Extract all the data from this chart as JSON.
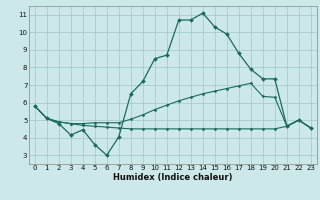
{
  "xlabel": "Humidex (Indice chaleur)",
  "bg_color": "#cce8e8",
  "grid_color": "#aacccc",
  "line_color": "#1a6b5a",
  "xlim": [
    -0.5,
    23.5
  ],
  "ylim": [
    2.5,
    11.5
  ],
  "xticks": [
    0,
    1,
    2,
    3,
    4,
    5,
    6,
    7,
    8,
    9,
    10,
    11,
    12,
    13,
    14,
    15,
    16,
    17,
    18,
    19,
    20,
    21,
    22,
    23
  ],
  "yticks": [
    3,
    4,
    5,
    6,
    7,
    8,
    9,
    10,
    11
  ],
  "series": [
    {
      "x": [
        0,
        1,
        2,
        3,
        4,
        5,
        6,
        7,
        8,
        9,
        10,
        11,
        12,
        13,
        14,
        15,
        16,
        17,
        18,
        19,
        20,
        21,
        22,
        23
      ],
      "y": [
        5.8,
        5.1,
        4.8,
        4.15,
        4.45,
        3.6,
        3.0,
        4.05,
        6.5,
        7.2,
        8.5,
        8.7,
        10.7,
        10.7,
        11.1,
        10.3,
        9.9,
        8.8,
        7.9,
        7.35,
        7.35,
        4.65,
        5.0,
        4.55
      ],
      "marker": "D",
      "markersize": 2.0,
      "linewidth": 0.9
    },
    {
      "x": [
        0,
        1,
        2,
        3,
        4,
        5,
        6,
        7,
        8,
        9,
        10,
        11,
        12,
        13,
        14,
        15,
        16,
        17,
        18,
        19,
        20,
        21,
        22,
        23
      ],
      "y": [
        5.8,
        5.1,
        4.9,
        4.8,
        4.8,
        4.85,
        4.85,
        4.85,
        5.05,
        5.3,
        5.6,
        5.85,
        6.1,
        6.3,
        6.5,
        6.65,
        6.8,
        6.95,
        7.1,
        6.35,
        6.3,
        4.65,
        5.0,
        4.55
      ],
      "marker": "D",
      "markersize": 1.5,
      "linewidth": 0.8
    },
    {
      "x": [
        0,
        1,
        2,
        3,
        4,
        5,
        6,
        7,
        8,
        9,
        10,
        11,
        12,
        13,
        14,
        15,
        16,
        17,
        18,
        19,
        20,
        21,
        22,
        23
      ],
      "y": [
        5.8,
        5.1,
        4.9,
        4.8,
        4.7,
        4.65,
        4.6,
        4.55,
        4.5,
        4.5,
        4.5,
        4.5,
        4.5,
        4.5,
        4.5,
        4.5,
        4.5,
        4.5,
        4.5,
        4.5,
        4.5,
        4.65,
        5.0,
        4.55
      ],
      "marker": "D",
      "markersize": 1.5,
      "linewidth": 0.8
    }
  ]
}
